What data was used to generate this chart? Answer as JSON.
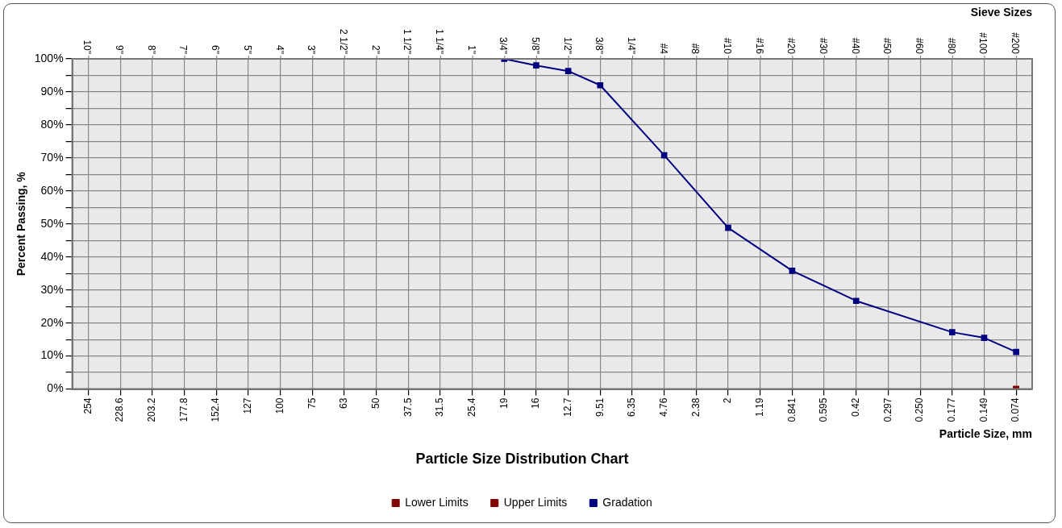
{
  "chart_data": {
    "type": "line",
    "title": "Particle Size Distribution Chart",
    "xlabel": "Particle Size, mm",
    "x2label": "Sieve Sizes",
    "ylabel": "Percent Passing, %",
    "categories": [
      "254",
      "228.6",
      "203.2",
      "177.8",
      "152.4",
      "127",
      "100",
      "75",
      "63",
      "50",
      "37.5",
      "31.5",
      "25.4",
      "19",
      "16",
      "12.7",
      "9.51",
      "6.35",
      "4.76",
      "2.38",
      "2",
      "1.19",
      "0.841",
      "0.595",
      "0.42",
      "0.297",
      "0.250",
      "0.177",
      "0.149",
      "0.074"
    ],
    "annotations": [
      "10\"",
      "9\"",
      "8\"",
      "7\"",
      "6\"",
      "5\"",
      "4\"",
      "3\"",
      "2 1/2\"",
      "2\"",
      "1 1/2\"",
      "1 1/4\"",
      "1\"",
      "3/4\"",
      "5/8\"",
      "1/2\"",
      "3/8\"",
      "1/4\"",
      "#4",
      "#8",
      "#10",
      "#16",
      "#20",
      "#30",
      "#40",
      "#50",
      "#60",
      "#80",
      "#100",
      "#200"
    ],
    "series": [
      {
        "name": "Lower Limits",
        "color": "#800000",
        "values": [
          null,
          null,
          null,
          null,
          null,
          null,
          null,
          null,
          null,
          null,
          null,
          null,
          null,
          null,
          null,
          null,
          null,
          null,
          null,
          null,
          null,
          null,
          null,
          null,
          null,
          null,
          null,
          null,
          null,
          0
        ]
      },
      {
        "name": "Upper Limits",
        "color": "#800000",
        "values": [
          null,
          null,
          null,
          null,
          null,
          null,
          null,
          null,
          null,
          null,
          null,
          null,
          null,
          null,
          null,
          null,
          null,
          null,
          null,
          null,
          null,
          null,
          null,
          null,
          null,
          null,
          null,
          null,
          null,
          0
        ]
      },
      {
        "name": "Gradation",
        "color": "#000080",
        "values": [
          null,
          null,
          null,
          null,
          null,
          null,
          null,
          null,
          null,
          null,
          null,
          null,
          null,
          100,
          98,
          96.3,
          92,
          null,
          70.8,
          null,
          48.8,
          null,
          35.8,
          null,
          26.7,
          null,
          null,
          17.2,
          15.5,
          11.2
        ]
      }
    ],
    "ylim": [
      0,
      100
    ],
    "yticks": [
      {
        "value": 0,
        "label": "0%"
      },
      {
        "value": 5,
        "label": null
      },
      {
        "value": 10,
        "label": "10%"
      },
      {
        "value": 15,
        "label": null
      },
      {
        "value": 20,
        "label": "20%"
      },
      {
        "value": 25,
        "label": null
      },
      {
        "value": 30,
        "label": "30%"
      },
      {
        "value": 35,
        "label": null
      },
      {
        "value": 40,
        "label": "40%"
      },
      {
        "value": 45,
        "label": null
      },
      {
        "value": 50,
        "label": "50%"
      },
      {
        "value": 55,
        "label": null
      },
      {
        "value": 60,
        "label": "60%"
      },
      {
        "value": 65,
        "label": null
      },
      {
        "value": 70,
        "label": "70%"
      },
      {
        "value": 75,
        "label": null
      },
      {
        "value": 80,
        "label": "80%"
      },
      {
        "value": 85,
        "label": null
      },
      {
        "value": 90,
        "label": "90%"
      },
      {
        "value": 95,
        "label": null
      },
      {
        "value": 100,
        "label": "100%"
      }
    ],
    "grid": true,
    "legend": "bottom",
    "marker": "square",
    "line_style": "solid"
  }
}
